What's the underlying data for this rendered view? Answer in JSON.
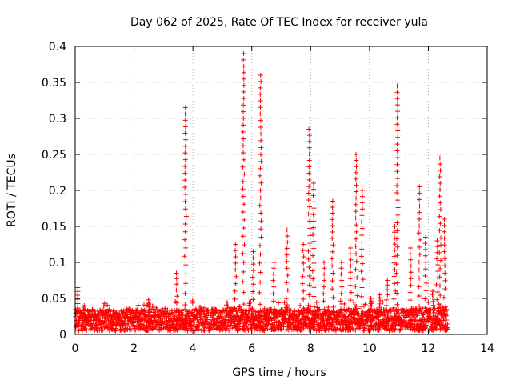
{
  "chart_data": {
    "type": "scatter",
    "title": "Day 062 of 2025, Rate Of TEC Index for receiver yula",
    "xlabel": "GPS time / hours",
    "ylabel": "ROTI / TECUs",
    "xlim": [
      0,
      14
    ],
    "ylim": [
      0,
      0.4
    ],
    "xticks": [
      0,
      2,
      4,
      6,
      8,
      10,
      12,
      14
    ],
    "xtick_labels": [
      "0",
      "2",
      "4",
      "6",
      "8",
      "10",
      "12",
      "14"
    ],
    "yticks": [
      0,
      0.05,
      0.1,
      0.15,
      0.2,
      0.25,
      0.3,
      0.35,
      0.4
    ],
    "ytick_labels": [
      "0",
      "0.05",
      "0.1",
      "0.15",
      "0.2",
      "0.25",
      "0.3",
      "0.35",
      "0.4"
    ],
    "grid": true,
    "marker": "+",
    "marker_color": "#ff0000",
    "series": [
      {
        "name": "ROTI",
        "color": "#ff0000",
        "baseline_range": {
          "x": [
            0.0,
            12.65
          ],
          "y_low": 0.005,
          "y_high": 0.035
        },
        "spikes": [
          {
            "x": 0.1,
            "peak": 0.065
          },
          {
            "x": 0.3,
            "peak": 0.04
          },
          {
            "x": 2.5,
            "peak": 0.048
          },
          {
            "x": 3.45,
            "peak": 0.085
          },
          {
            "x": 3.75,
            "peak": 0.315
          },
          {
            "x": 5.45,
            "peak": 0.125
          },
          {
            "x": 5.72,
            "peak": 0.39
          },
          {
            "x": 6.05,
            "peak": 0.115
          },
          {
            "x": 6.3,
            "peak": 0.36
          },
          {
            "x": 6.75,
            "peak": 0.1
          },
          {
            "x": 7.2,
            "peak": 0.145
          },
          {
            "x": 7.75,
            "peak": 0.125
          },
          {
            "x": 7.95,
            "peak": 0.285
          },
          {
            "x": 8.1,
            "peak": 0.21
          },
          {
            "x": 8.45,
            "peak": 0.1
          },
          {
            "x": 8.75,
            "peak": 0.185
          },
          {
            "x": 9.05,
            "peak": 0.1
          },
          {
            "x": 9.35,
            "peak": 0.12
          },
          {
            "x": 9.55,
            "peak": 0.25
          },
          {
            "x": 9.75,
            "peak": 0.2
          },
          {
            "x": 10.05,
            "peak": 0.05
          },
          {
            "x": 10.35,
            "peak": 0.055
          },
          {
            "x": 10.6,
            "peak": 0.075
          },
          {
            "x": 10.85,
            "peak": 0.15
          },
          {
            "x": 10.95,
            "peak": 0.345
          },
          {
            "x": 11.4,
            "peak": 0.12
          },
          {
            "x": 11.7,
            "peak": 0.205
          },
          {
            "x": 11.9,
            "peak": 0.135
          },
          {
            "x": 12.15,
            "peak": 0.06
          },
          {
            "x": 12.3,
            "peak": 0.13
          },
          {
            "x": 12.4,
            "peak": 0.245
          },
          {
            "x": 12.55,
            "peak": 0.16
          }
        ]
      }
    ]
  }
}
